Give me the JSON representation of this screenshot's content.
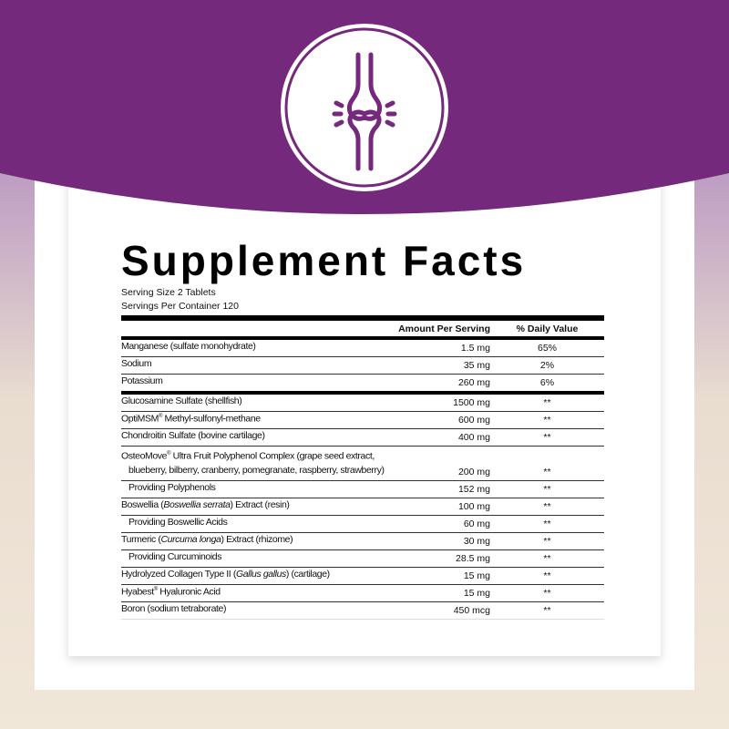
{
  "colors": {
    "brand_purple": "#74297c",
    "background_top": "#9a6fae",
    "background_bottom": "#f1e7d9"
  },
  "icon": "joint-bone-icon",
  "title": "Supplement Facts",
  "serving_size": "Serving Size 2 Tablets",
  "servings_per_container": "Servings Per Container 120",
  "headers": {
    "amount": "Amount Per Serving",
    "dv": "% Daily Value"
  },
  "rows": [
    {
      "name": "Manganese (sulfate monohydrate)",
      "amount": "1.5 mg",
      "dv": "65%"
    },
    {
      "name": "Sodium",
      "amount": "35 mg",
      "dv": "2%"
    },
    {
      "name": "Potassium",
      "amount": "260 mg",
      "dv": "6%"
    },
    {
      "name": "Glucosamine Sulfate (shellfish)",
      "amount": "1500 mg",
      "dv": "**"
    },
    {
      "name": "OptiMSM",
      "reg": "®",
      "post": " Methyl-sulfonyl-methane",
      "amount": "600 mg",
      "dv": "**"
    },
    {
      "name": "Chondroitin Sulfate (bovine cartilage)",
      "amount": "400 mg",
      "dv": "**"
    },
    {
      "name": "OsteoMove",
      "reg": "®",
      "post": " Ultra Fruit Polyphenol Complex (grape seed extract,",
      "line2": "blueberry, bilberry, cranberry, pomegranate, raspberry, strawberry)",
      "amount": "200 mg",
      "dv": "**"
    },
    {
      "name": "Providing Polyphenols",
      "amount": "152 mg",
      "dv": "**"
    },
    {
      "name": "Boswellia (",
      "italic": "Boswellia serrata",
      "post": ") Extract (resin)",
      "amount": "100 mg",
      "dv": "**"
    },
    {
      "name": "Providing Boswellic Acids",
      "amount": "60 mg",
      "dv": "**"
    },
    {
      "name": "Turmeric (",
      "italic": "Curcuma longa",
      "post": ") Extract (rhizome)",
      "amount": "30 mg",
      "dv": "**"
    },
    {
      "name": "Providing Curcuminoids",
      "amount": "28.5 mg",
      "dv": "**"
    },
    {
      "name": "Hydrolyzed Collagen Type II (",
      "italic": "Gallus gallus",
      "post": ") (cartilage)",
      "amount": "15 mg",
      "dv": "**"
    },
    {
      "name": "Hyabest",
      "reg": "®",
      "post": " Hyaluronic Acid",
      "amount": "15 mg",
      "dv": "**"
    },
    {
      "name": "Boron (sodium tetraborate)",
      "amount": "450 mcg",
      "dv": "**"
    }
  ]
}
